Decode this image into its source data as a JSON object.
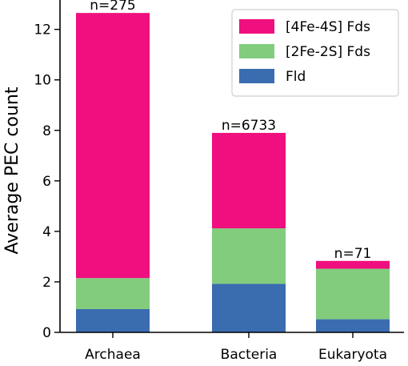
{
  "chart_data": {
    "type": "bar",
    "stacked": true,
    "categories": [
      "Archaea",
      "Bacteria",
      "Eukaryota"
    ],
    "series": [
      {
        "name": "Fld",
        "color": "#3a6cb0",
        "values": [
          0.92,
          1.92,
          0.52
        ]
      },
      {
        "name": "[2Fe-2S] Fds",
        "color": "#82cc7e",
        "values": [
          1.23,
          2.2,
          2.0
        ]
      },
      {
        "name": "[4Fe-4S] Fds",
        "color": "#ef0f7e",
        "values": [
          10.5,
          3.78,
          0.31
        ]
      }
    ],
    "totals": [
      12.65,
      7.9,
      2.83
    ],
    "annotations": [
      "n=275",
      "n=6733",
      "n=71"
    ],
    "ylabel": "Average PEC count",
    "xlabel": "",
    "ylim": [
      0,
      13.1
    ],
    "yticks": [
      0,
      2,
      4,
      6,
      8,
      10,
      12
    ],
    "legend_order": [
      "[4Fe-4S] Fds",
      "[2Fe-2S] Fds",
      "Fld"
    ],
    "legend_position": "top-right",
    "grid": false
  }
}
